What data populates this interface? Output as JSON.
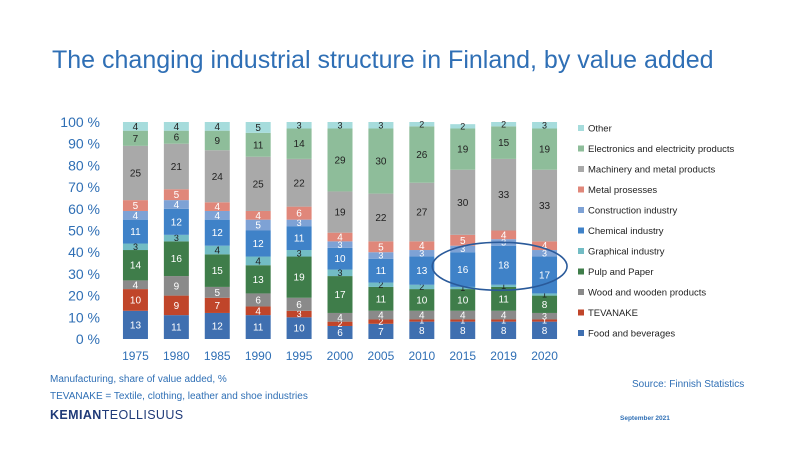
{
  "slide": {
    "title": "The changing industrial structure in Finland, by value added",
    "footnote_1": "Manufacturing, share of value added, %",
    "footnote_2": "TEVANAKE = Textile, clothing, leather and shoe industries",
    "source": "Source: Finnish Statistics",
    "logo_part1": "KEMIAN",
    "logo_part2": "TEOLLISUUS",
    "date": "September 2021"
  },
  "chart_data": {
    "type": "bar",
    "stacked": true,
    "title": "The changing industrial structure in Finland, by value added",
    "xlabel": "",
    "ylabel": "",
    "ylim": [
      0,
      100
    ],
    "yticks": [
      "0 %",
      "10 %",
      "20 %",
      "30 %",
      "40 %",
      "50 %",
      "60 %",
      "70 %",
      "80 %",
      "90 %",
      "100 %"
    ],
    "grid": false,
    "legend_position": "right",
    "highlight_ellipse_around": [
      "2015",
      "2019",
      "2020"
    ],
    "categories": [
      "1975",
      "1980",
      "1985",
      "1990",
      "1995",
      "2000",
      "2005",
      "2010",
      "2015",
      "2019",
      "2020"
    ],
    "series": [
      {
        "name": "Food and beverages",
        "color": "#3f6fb0",
        "values": [
          13,
          11,
          12,
          11,
          10,
          6,
          7,
          8,
          8,
          8,
          8
        ]
      },
      {
        "name": "TEVANAKE",
        "color": "#c0452a",
        "values": [
          10,
          9,
          7,
          4,
          3,
          2,
          2,
          1,
          1,
          1,
          1
        ]
      },
      {
        "name": "Wood and wooden products",
        "color": "#8a8a8a",
        "values": [
          4,
          9,
          5,
          6,
          6,
          4,
          4,
          4,
          4,
          4,
          3
        ]
      },
      {
        "name": "Pulp and Paper",
        "color": "#3f7d4a",
        "values": [
          14,
          16,
          15,
          13,
          19,
          17,
          11,
          10,
          10,
          11,
          8
        ]
      },
      {
        "name": "Graphical industry",
        "color": "#72bcc4",
        "values": [
          3,
          3,
          4,
          4,
          3,
          3,
          2,
          2,
          1,
          1,
          1
        ]
      },
      {
        "name": "Chemical industry",
        "color": "#3f82c8",
        "values": [
          11,
          12,
          12,
          12,
          11,
          10,
          11,
          13,
          16,
          18,
          17
        ]
      },
      {
        "name": "Construction industry",
        "color": "#7ea2d5",
        "values": [
          4,
          4,
          4,
          5,
          3,
          3,
          3,
          3,
          3,
          3,
          3
        ]
      },
      {
        "name": "Metal prosesses",
        "color": "#e0877a",
        "values": [
          5,
          5,
          4,
          4,
          6,
          4,
          5,
          4,
          5,
          4,
          4
        ]
      },
      {
        "name": "Machinery and metal products",
        "color": "#a9a9a9",
        "values": [
          25,
          21,
          24,
          25,
          22,
          19,
          22,
          27,
          30,
          33,
          33
        ]
      },
      {
        "name": "Electronics and electricity products",
        "color": "#8ebd9a",
        "values": [
          7,
          6,
          9,
          11,
          14,
          29,
          30,
          26,
          19,
          15,
          19
        ]
      },
      {
        "name": "Other",
        "color": "#a6dcdc",
        "values": [
          4,
          4,
          4,
          5,
          3,
          3,
          3,
          2,
          2,
          2,
          3
        ]
      }
    ]
  }
}
